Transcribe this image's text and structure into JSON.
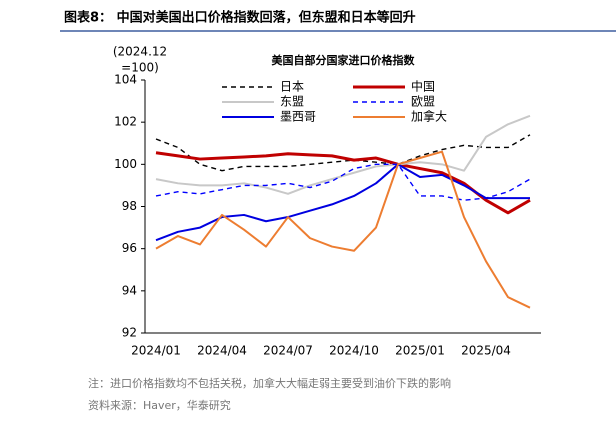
{
  "title": "图表8：  中国对美国出口价格指数回落，但东盟和日本等回升",
  "chart_data": {
    "type": "line",
    "title": "美国自部分国家进口价格指数",
    "ylabel": [
      "(2024.12",
      "=100)"
    ],
    "categories": [
      "2024/01",
      null,
      null,
      "2024/04",
      null,
      null,
      "2024/07",
      null,
      null,
      "2024/10",
      null,
      null,
      "2025/01",
      null,
      null,
      "2025/04",
      null,
      null
    ],
    "ylim": [
      92,
      104
    ],
    "yticks": [
      92,
      94,
      96,
      98,
      100,
      102,
      104
    ],
    "legend": "upper-center",
    "series": [
      {
        "name": "日本",
        "color": "#000000",
        "dash": "dashed",
        "width": 1.4,
        "values": [
          101.2,
          100.8,
          100.0,
          99.7,
          99.9,
          99.9,
          99.9,
          100.0,
          100.1,
          100.2,
          100.1,
          100.0,
          100.4,
          100.7,
          100.9,
          100.8,
          100.8,
          101.4
        ]
      },
      {
        "name": "中国",
        "color": "#c00000",
        "dash": "solid",
        "width": 3,
        "values": [
          100.55,
          100.4,
          100.25,
          100.3,
          100.35,
          100.4,
          100.5,
          100.45,
          100.4,
          100.2,
          100.3,
          100.0,
          99.8,
          99.6,
          99.1,
          98.3,
          97.7,
          98.3
        ]
      },
      {
        "name": "东盟",
        "color": "#c8c8c8",
        "dash": "solid",
        "width": 2,
        "values": [
          99.3,
          99.1,
          99.0,
          99.0,
          99.1,
          98.9,
          98.6,
          99.0,
          99.3,
          99.6,
          99.9,
          100.0,
          100.1,
          100.0,
          99.7,
          101.3,
          101.9,
          102.3
        ]
      },
      {
        "name": "欧盟",
        "color": "#0000ff",
        "dash": "dashed",
        "width": 1.4,
        "values": [
          98.5,
          98.7,
          98.6,
          98.8,
          99.0,
          99.0,
          99.1,
          98.9,
          99.2,
          99.8,
          100.0,
          100.0,
          98.5,
          98.5,
          98.3,
          98.4,
          98.7,
          99.3
        ]
      },
      {
        "name": "墨西哥",
        "color": "#0000e0",
        "dash": "solid",
        "width": 2,
        "values": [
          96.4,
          96.8,
          97.0,
          97.5,
          97.6,
          97.3,
          97.5,
          97.8,
          98.1,
          98.5,
          99.1,
          100.0,
          99.4,
          99.5,
          99.0,
          98.4,
          98.4,
          98.4
        ]
      },
      {
        "name": "加拿大",
        "color": "#ed7d31",
        "dash": "solid",
        "width": 2,
        "values": [
          96.0,
          96.6,
          96.2,
          97.6,
          96.9,
          96.1,
          97.5,
          96.5,
          96.1,
          95.9,
          97.0,
          100.0,
          100.3,
          100.6,
          97.5,
          95.4,
          93.7,
          93.2
        ]
      }
    ]
  },
  "notes": [
    "注：进口价格指数均不包括关税，加拿大大幅走弱主要受到油价下跌的影响",
    "资料来源：Haver，华泰研究"
  ]
}
